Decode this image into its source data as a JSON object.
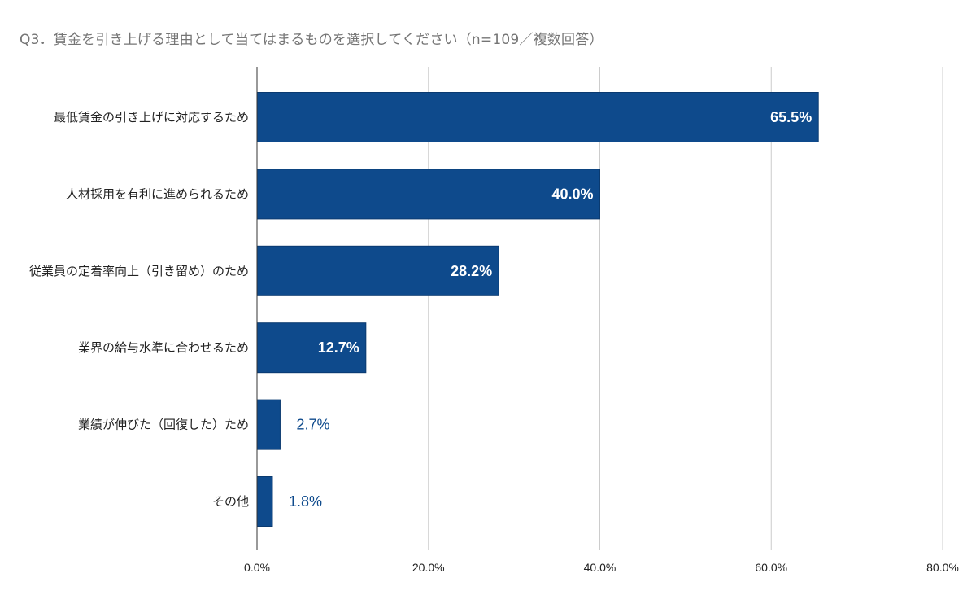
{
  "title": "Q3．賃金を引き上げる理由として当てはまるものを選択してください（n=109／複数回答）",
  "chart_data": {
    "type": "bar",
    "orientation": "horizontal",
    "categories": [
      "最低賃金の引き上げに対応するため",
      "人材採用を有利に進められるため",
      "従業員の定着率向上（引き留め）のため",
      "業界の給与水準に合わせるため",
      "業績が伸びた（回復した）ため",
      "その他"
    ],
    "values": [
      65.5,
      40.0,
      28.2,
      12.7,
      2.7,
      1.8
    ],
    "value_labels": [
      "65.5%",
      "40.0%",
      "28.2%",
      "12.7%",
      "2.7%",
      "1.8%"
    ],
    "xlim": [
      0,
      80
    ],
    "xticks": [
      0,
      20,
      40,
      60,
      80
    ],
    "xtick_labels": [
      "0.0%",
      "20.0%",
      "40.0%",
      "60.0%",
      "80.0%"
    ],
    "grid": true,
    "legend": "none",
    "bar_color": "#0e4a8c"
  }
}
